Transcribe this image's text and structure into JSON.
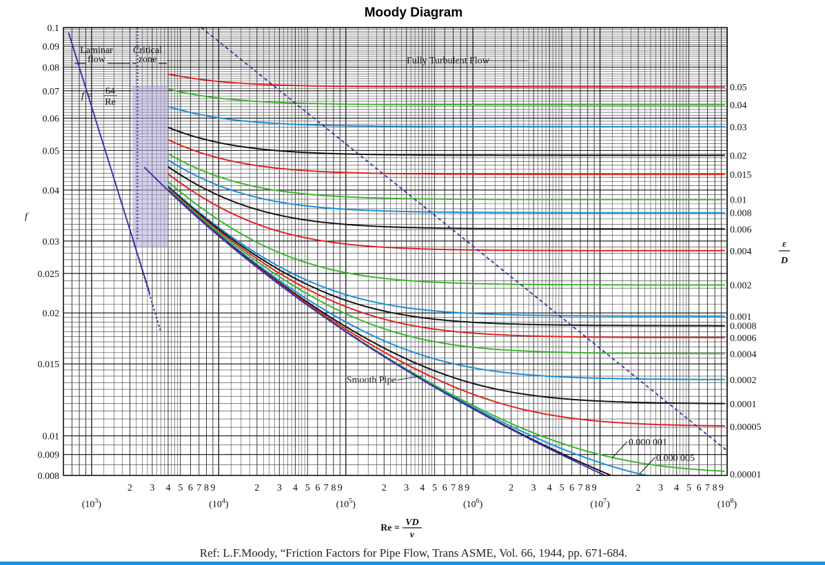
{
  "chart_data": {
    "type": "line",
    "title": "Moody Diagram",
    "xlabel": "Re = VD/ν",
    "xlabel_parts": {
      "lhs": "Re = ",
      "num": "VD",
      "den": "ν"
    },
    "ylabel": "f",
    "right_label": {
      "num": "ε",
      "den": "D"
    },
    "x_scale": "log",
    "y_scale": "log",
    "xlim": [
      600,
      100000000
    ],
    "ylim": [
      0.008,
      0.1
    ],
    "grid": true,
    "x_decade_labels": [
      {
        "value": 1000,
        "base": "(10",
        "exp": "3",
        "close": ")"
      },
      {
        "value": 10000,
        "base": "(10",
        "exp": "4",
        "close": ")"
      },
      {
        "value": 100000,
        "base": "(10",
        "exp": "5",
        "close": ")"
      },
      {
        "value": 1000000,
        "base": "(10",
        "exp": "6",
        "close": ")"
      },
      {
        "value": 10000000,
        "base": "(10",
        "exp": "7",
        "close": ")"
      },
      {
        "value": 100000000,
        "base": "(10",
        "exp": "8",
        "close": ")"
      }
    ],
    "x_minor_digits": [
      "2",
      "3",
      "4",
      "5",
      "6",
      "7",
      "8",
      "9"
    ],
    "y_ticks": [
      {
        "value": 0.1,
        "label": "0.1"
      },
      {
        "value": 0.09,
        "label": "0.09"
      },
      {
        "value": 0.08,
        "label": "0.08"
      },
      {
        "value": 0.07,
        "label": "0.07"
      },
      {
        "value": 0.06,
        "label": "0.06"
      },
      {
        "value": 0.05,
        "label": "0.05"
      },
      {
        "value": 0.04,
        "label": "0.04"
      },
      {
        "value": 0.03,
        "label": "0.03"
      },
      {
        "value": 0.025,
        "label": "0.025"
      },
      {
        "value": 0.02,
        "label": "0.02"
      },
      {
        "value": 0.015,
        "label": "0.015"
      },
      {
        "value": 0.01,
        "label": "0.01"
      },
      {
        "value": 0.009,
        "label": "0.009"
      },
      {
        "value": 0.008,
        "label": "0.008"
      }
    ],
    "roughness_series": [
      {
        "name": "0.05",
        "value": 0.05,
        "color": "#e0221f"
      },
      {
        "name": "0.04",
        "value": 0.04,
        "color": "#3cb52b"
      },
      {
        "name": "0.03",
        "value": 0.03,
        "color": "#1a8fd8"
      },
      {
        "name": "0.02",
        "value": 0.02,
        "color": "#111111"
      },
      {
        "name": "0.015",
        "value": 0.015,
        "color": "#e0221f"
      },
      {
        "name": "0.01",
        "value": 0.01,
        "color": "#3cb52b"
      },
      {
        "name": "0.008",
        "value": 0.008,
        "color": "#1a8fd8"
      },
      {
        "name": "0.006",
        "value": 0.006,
        "color": "#111111"
      },
      {
        "name": "0.004",
        "value": 0.004,
        "color": "#e0221f"
      },
      {
        "name": "0.002",
        "value": 0.002,
        "color": "#3cb52b"
      },
      {
        "name": "0.001",
        "value": 0.001,
        "color": "#1a8fd8"
      },
      {
        "name": "0.0008",
        "value": 0.0008,
        "color": "#111111"
      },
      {
        "name": "0.0006",
        "value": 0.0006,
        "color": "#e0221f"
      },
      {
        "name": "0.0004",
        "value": 0.0004,
        "color": "#3cb52b"
      },
      {
        "name": "0.0002",
        "value": 0.0002,
        "color": "#1a8fd8"
      },
      {
        "name": "0.0001",
        "value": 0.0001,
        "color": "#111111"
      },
      {
        "name": "0.00005",
        "value": 5e-05,
        "color": "#e0221f"
      },
      {
        "name": "0.00001",
        "value": 1e-05,
        "color": "#3cb52b"
      },
      {
        "name": "0.000 005",
        "value": 5e-06,
        "color": "#1a8fd8"
      },
      {
        "name": "0.000 001",
        "value": 1e-06,
        "color": "#111111"
      }
    ],
    "smooth_pipe": {
      "label": "Smooth Pipe",
      "color": "#4433aa"
    },
    "laminar": {
      "label_f": "f =",
      "num": "64",
      "den": "Re",
      "color": "#4433aa"
    },
    "transition_line_color": "#3a2e9e",
    "annotations": {
      "laminar_flow": [
        "Laminar",
        "flow"
      ],
      "critical_zone": [
        "Critical",
        "zone"
      ],
      "fully_turbulent": "Fully Turbulent Flow"
    },
    "reference": "Ref: L.F.Moody, “Friction Factors for Pipe Flow, Trans ASME, Vol. 66, 1944, pp. 671-684."
  }
}
